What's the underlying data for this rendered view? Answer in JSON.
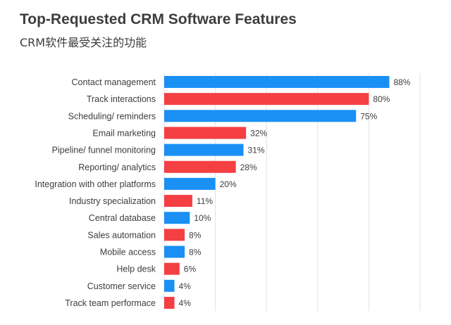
{
  "chart_data": {
    "type": "bar",
    "orientation": "horizontal",
    "title": "Top-Requested CRM Software Features",
    "subtitle": "CRM软件最受关注的功能",
    "categories": [
      "Contact management",
      "Track interactions",
      "Scheduling/ reminders",
      "Email marketing",
      "Pipeline/ funnel monitoring",
      "Reporting/ analytics",
      "Integration with other platforms",
      "Industry specialization",
      "Central database",
      "Sales automation",
      "Mobile access",
      "Help desk",
      "Customer service",
      "Track team performace"
    ],
    "values": [
      88,
      80,
      75,
      32,
      31,
      28,
      20,
      11,
      10,
      8,
      8,
      6,
      4,
      4
    ],
    "value_labels": [
      "88%",
      "80%",
      "75%",
      "32%",
      "31%",
      "28%",
      "20%",
      "11%",
      "10%",
      "8%",
      "8%",
      "6%",
      "4%",
      "4%"
    ],
    "bar_colors": [
      "blue",
      "red",
      "blue",
      "red",
      "blue",
      "red",
      "blue",
      "red",
      "blue",
      "red",
      "blue",
      "red",
      "blue",
      "red"
    ],
    "unit": "%",
    "xlim": [
      0,
      100
    ],
    "grid": true,
    "gridlines_at": [
      0,
      20,
      40,
      60,
      80,
      100
    ],
    "colors": {
      "blue": "#1a90f5",
      "red": "#f43f43",
      "grid": "#e2e2e2",
      "text": "#3d3d3d"
    }
  }
}
